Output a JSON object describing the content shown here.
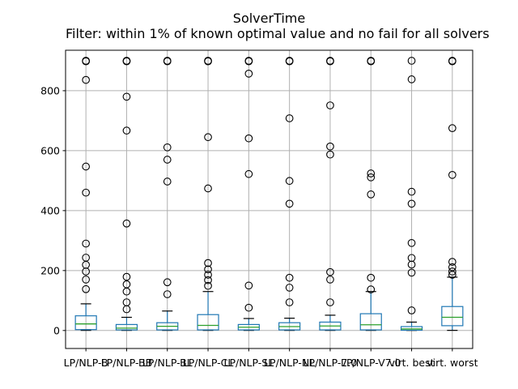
{
  "header": {
    "title": "SolverTime",
    "subtitle": "Filter: within 1% of known optimal value and no fail for all solvers"
  },
  "chart_data": {
    "type": "boxplot",
    "title": "SolverTime",
    "subtitle": "Filter: within 1% of known optimal value and no fail for all solvers",
    "xlabel": "",
    "ylabel": "",
    "grid": true,
    "legend": false,
    "ylim": [
      -60,
      935
    ],
    "yticks": [
      0,
      200,
      400,
      600,
      800
    ],
    "categories": [
      "LP/NLP-B",
      "LP/NLP-BB",
      "LP/NLP-BL",
      "LP/NLP-CL",
      "LP/NLP-SL",
      "LP/NLP-NL",
      "LP/NLP-7.0",
      "LP/NLP-V7.0",
      "virt. best",
      "virt. worst"
    ],
    "boxes": [
      {
        "label": "LP/NLP-B",
        "whislo": 0.5,
        "q1": 3,
        "med": 22,
        "q3": 49,
        "whishi": 89,
        "fliers": [
          138,
          170,
          197,
          219,
          243,
          290,
          460,
          547,
          836,
          898,
          900
        ]
      },
      {
        "label": "LP/NLP-BB",
        "whislo": 0.5,
        "q1": 2,
        "med": 8,
        "q3": 20,
        "whishi": 44,
        "fliers": [
          71,
          94,
          130,
          154,
          179,
          357,
          667,
          780,
          898,
          900
        ]
      },
      {
        "label": "LP/NLP-BL",
        "whislo": 0.5,
        "q1": 2,
        "med": 14,
        "q3": 26,
        "whishi": 65,
        "fliers": [
          121,
          161,
          497,
          570,
          611,
          898,
          900
        ]
      },
      {
        "label": "LP/NLP-CL",
        "whislo": 0.5,
        "q1": 2,
        "med": 17,
        "q3": 53,
        "whishi": 130,
        "fliers": [
          149,
          168,
          186,
          204,
          225,
          474,
          645,
          898,
          900
        ]
      },
      {
        "label": "LP/NLP-SL",
        "whislo": 0.5,
        "q1": 2,
        "med": 11,
        "q3": 20,
        "whishi": 40,
        "fliers": [
          76,
          150,
          522,
          641,
          857,
          898,
          900
        ]
      },
      {
        "label": "LP/NLP-NL",
        "whislo": 0.5,
        "q1": 2,
        "med": 13,
        "q3": 26,
        "whishi": 41,
        "fliers": [
          94,
          143,
          176,
          423,
          499,
          708,
          898,
          900
        ]
      },
      {
        "label": "LP/NLP-7.0",
        "whislo": 0.5,
        "q1": 2,
        "med": 15,
        "q3": 28,
        "whishi": 51,
        "fliers": [
          94,
          170,
          195,
          587,
          614,
          751,
          898,
          900
        ]
      },
      {
        "label": "LP/NLP-V7.0",
        "whislo": 0.5,
        "q1": 2,
        "med": 19,
        "q3": 56,
        "whishi": 130,
        "fliers": [
          137,
          176,
          454,
          511,
          524,
          898,
          900
        ]
      },
      {
        "label": "virt. best",
        "whislo": 0.3,
        "q1": 1,
        "med": 5,
        "q3": 13,
        "whishi": 28,
        "fliers": [
          67,
          193,
          220,
          242,
          292,
          423,
          463,
          838,
          900
        ]
      },
      {
        "label": "virt. worst",
        "whislo": 0.5,
        "q1": 16,
        "med": 44,
        "q3": 80,
        "whishi": 178,
        "fliers": [
          186,
          197,
          211,
          229,
          519,
          675,
          898,
          900
        ]
      }
    ],
    "colors": {
      "box": "#1f77b4",
      "median": "#2ca02c",
      "whisker": "#1f77b4",
      "cap": "#000000",
      "flier": "#000000",
      "grid": "#b0b0b0",
      "spine": "#000000",
      "text": "#000000"
    }
  }
}
